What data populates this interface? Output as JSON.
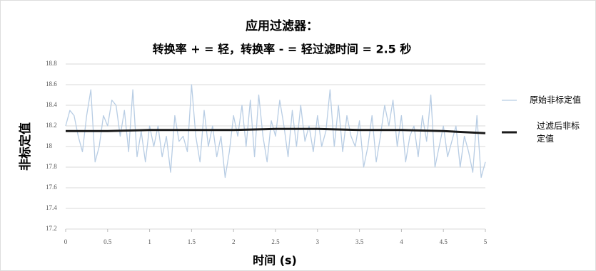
{
  "chart_data": {
    "type": "line",
    "title": "应用过滤器：",
    "subtitle": "转换率 + = 轻，转换率 - = 轻过滤时间 = 2.5 秒",
    "x_label": "时间 (s)",
    "y_label": "非标定值",
    "xlim": [
      0,
      5
    ],
    "xticks": [
      0,
      0.5,
      1,
      1.5,
      2,
      2.5,
      3,
      3.5,
      4,
      4.5,
      5
    ],
    "ylim": [
      17.2,
      18.8
    ],
    "yticks": [
      17.2,
      17.4,
      17.6,
      17.8,
      18,
      18.2,
      18.4,
      18.6,
      18.8
    ],
    "grid": true,
    "legend": "right",
    "series": [
      {
        "name": "原始非标定值",
        "color": "#b8cde4",
        "width": 1.3,
        "x": [
          0,
          0.05,
          0.1,
          0.15,
          0.2,
          0.25,
          0.3,
          0.35,
          0.4,
          0.45,
          0.5,
          0.55,
          0.6,
          0.65,
          0.7,
          0.75,
          0.8,
          0.85,
          0.9,
          0.95,
          1,
          1.05,
          1.1,
          1.15,
          1.2,
          1.25,
          1.3,
          1.35,
          1.4,
          1.45,
          1.5,
          1.55,
          1.6,
          1.65,
          1.7,
          1.75,
          1.8,
          1.85,
          1.9,
          1.95,
          2,
          2.05,
          2.1,
          2.15,
          2.2,
          2.25,
          2.3,
          2.35,
          2.4,
          2.45,
          2.5,
          2.55,
          2.6,
          2.65,
          2.7,
          2.75,
          2.8,
          2.85,
          2.9,
          2.95,
          3,
          3.05,
          3.1,
          3.15,
          3.2,
          3.25,
          3.3,
          3.35,
          3.4,
          3.45,
          3.5,
          3.55,
          3.6,
          3.65,
          3.7,
          3.75,
          3.8,
          3.85,
          3.9,
          3.95,
          4,
          4.05,
          4.1,
          4.15,
          4.2,
          4.25,
          4.3,
          4.35,
          4.4,
          4.45,
          4.5,
          4.55,
          4.6,
          4.65,
          4.7,
          4.75,
          4.8,
          4.85,
          4.9,
          4.95,
          5
        ],
        "values": [
          18.2,
          18.35,
          18.3,
          18.1,
          17.95,
          18.3,
          18.55,
          17.85,
          18.0,
          18.3,
          18.2,
          18.45,
          18.4,
          18.1,
          18.35,
          17.95,
          18.55,
          17.9,
          18.15,
          17.85,
          18.2,
          18.0,
          18.2,
          17.9,
          18.1,
          17.75,
          18.3,
          18.05,
          18.1,
          17.95,
          18.6,
          18.1,
          17.85,
          18.35,
          18.0,
          18.2,
          17.9,
          18.1,
          17.7,
          17.95,
          18.3,
          18.1,
          18.4,
          18.0,
          18.45,
          17.9,
          18.5,
          18.1,
          17.85,
          18.25,
          18.1,
          18.45,
          18.2,
          17.9,
          18.35,
          18.0,
          18.4,
          18.05,
          18.2,
          17.95,
          18.3,
          18.0,
          18.15,
          18.55,
          18.0,
          18.4,
          17.95,
          18.3,
          18.1,
          18.0,
          18.25,
          17.8,
          18.0,
          18.3,
          17.85,
          18.1,
          18.4,
          18.2,
          18.45,
          18.0,
          18.3,
          17.85,
          18.1,
          18.2,
          17.9,
          18.3,
          18.05,
          18.5,
          17.8,
          18.0,
          18.2,
          17.9,
          18.05,
          18.2,
          17.8,
          18.1,
          17.95,
          17.75,
          18.3,
          17.7,
          17.85
        ]
      },
      {
        "name": "过滤后非标定值",
        "color": "#1a1a1a",
        "width": 3,
        "x": [
          0,
          0.5,
          1,
          1.5,
          2,
          2.5,
          3,
          3.5,
          4,
          4.5,
          5
        ],
        "values": [
          18.15,
          18.15,
          18.16,
          18.16,
          18.16,
          18.17,
          18.17,
          18.16,
          18.16,
          18.15,
          18.13
        ]
      }
    ]
  }
}
